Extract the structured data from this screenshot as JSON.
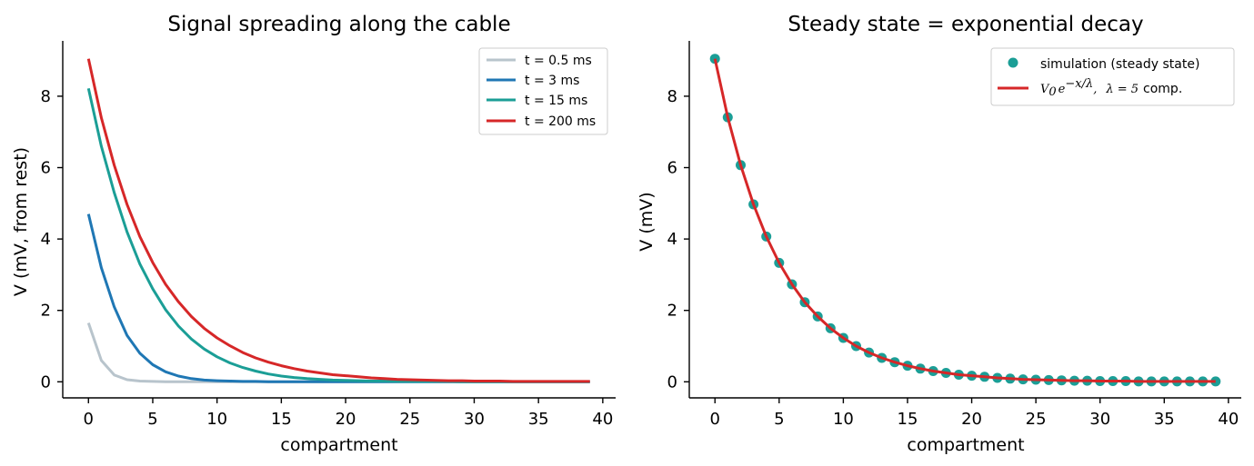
{
  "chart_data": [
    {
      "type": "line",
      "title": "Signal spreading along the cable",
      "xlabel": "compartment",
      "ylabel": "V (mV, from rest)",
      "xlim": [
        -2,
        41
      ],
      "ylim": [
        -0.45,
        9.55
      ],
      "xticks": [
        0,
        5,
        10,
        15,
        20,
        25,
        30,
        35,
        40
      ],
      "yticks": [
        0,
        2,
        4,
        6,
        8
      ],
      "grid": false,
      "legend_position": "top-right",
      "x": [
        0,
        1,
        2,
        3,
        4,
        5,
        6,
        7,
        8,
        9,
        10,
        11,
        12,
        13,
        14,
        15,
        16,
        17,
        18,
        19,
        20,
        21,
        22,
        23,
        24,
        25,
        26,
        27,
        28,
        29,
        30,
        31,
        32,
        33,
        34,
        35,
        36,
        37,
        38,
        39
      ],
      "series": [
        {
          "name": "t = 0.5 ms",
          "color": "#b8c4cc",
          "values": [
            1.65,
            0.6,
            0.19,
            0.06,
            0.02,
            0.01,
            0,
            0,
            0,
            0,
            0,
            0,
            0,
            0,
            0,
            0,
            0,
            0,
            0,
            0,
            0,
            0,
            0,
            0,
            0,
            0,
            0,
            0,
            0,
            0,
            0,
            0,
            0,
            0,
            0,
            0,
            0,
            0,
            0,
            0
          ]
        },
        {
          "name": "t = 3 ms",
          "color": "#1f77b4",
          "values": [
            4.7,
            3.2,
            2.1,
            1.3,
            0.8,
            0.48,
            0.28,
            0.16,
            0.09,
            0.05,
            0.03,
            0.02,
            0.01,
            0.01,
            0,
            0,
            0,
            0,
            0,
            0,
            0,
            0,
            0,
            0,
            0,
            0,
            0,
            0,
            0,
            0,
            0,
            0,
            0,
            0,
            0,
            0,
            0,
            0,
            0,
            0
          ]
        },
        {
          "name": "t = 15 ms",
          "color": "#1b9e96",
          "values": [
            8.22,
            6.6,
            5.3,
            4.2,
            3.3,
            2.6,
            2.02,
            1.56,
            1.2,
            0.92,
            0.7,
            0.53,
            0.4,
            0.3,
            0.22,
            0.16,
            0.12,
            0.09,
            0.07,
            0.05,
            0.04,
            0.03,
            0.02,
            0.02,
            0.01,
            0.01,
            0.01,
            0.01,
            0.01,
            0,
            0,
            0,
            0,
            0,
            0,
            0,
            0,
            0,
            0,
            0
          ]
        },
        {
          "name": "t = 200 ms",
          "color": "#d62728",
          "values": [
            9.05,
            7.4,
            6.07,
            4.97,
            4.07,
            3.34,
            2.73,
            2.24,
            1.83,
            1.5,
            1.23,
            1.01,
            0.82,
            0.67,
            0.55,
            0.45,
            0.37,
            0.3,
            0.25,
            0.2,
            0.17,
            0.14,
            0.11,
            0.09,
            0.07,
            0.06,
            0.05,
            0.04,
            0.03,
            0.03,
            0.02,
            0.02,
            0.02,
            0.01,
            0.01,
            0.01,
            0.01,
            0.01,
            0.01,
            0.01
          ]
        }
      ]
    },
    {
      "type": "scatter",
      "title": "Steady state = exponential decay",
      "xlabel": "compartment",
      "ylabel": "V (mV)",
      "xlim": [
        -2,
        41
      ],
      "ylim": [
        -0.45,
        9.55
      ],
      "xticks": [
        0,
        5,
        10,
        15,
        20,
        25,
        30,
        35,
        40
      ],
      "yticks": [
        0,
        2,
        4,
        6,
        8
      ],
      "grid": false,
      "legend_position": "top-right",
      "x": [
        0,
        1,
        2,
        3,
        4,
        5,
        6,
        7,
        8,
        9,
        10,
        11,
        12,
        13,
        14,
        15,
        16,
        17,
        18,
        19,
        20,
        21,
        22,
        23,
        24,
        25,
        26,
        27,
        28,
        29,
        30,
        31,
        32,
        33,
        34,
        35,
        36,
        37,
        38,
        39
      ],
      "series": [
        {
          "name": "simulation (steady state)",
          "kind": "points",
          "color": "#1b9e96",
          "values": [
            9.05,
            7.41,
            6.07,
            4.97,
            4.07,
            3.33,
            2.73,
            2.23,
            1.83,
            1.5,
            1.23,
            1.0,
            0.82,
            0.67,
            0.55,
            0.45,
            0.37,
            0.3,
            0.25,
            0.2,
            0.17,
            0.14,
            0.11,
            0.09,
            0.07,
            0.06,
            0.05,
            0.04,
            0.03,
            0.03,
            0.02,
            0.02,
            0.02,
            0.01,
            0.01,
            0.01,
            0.01,
            0.01,
            0.01,
            0.01
          ]
        },
        {
          "name": "V0 e^{-x/λ},  λ = 5 comp.",
          "kind": "line",
          "color": "#d62728",
          "V0": 9.05,
          "lambda": 5,
          "values": [
            9.05,
            7.41,
            6.07,
            4.97,
            4.07,
            3.33,
            2.73,
            2.23,
            1.83,
            1.5,
            1.23,
            1.0,
            0.82,
            0.67,
            0.55,
            0.45,
            0.37,
            0.3,
            0.25,
            0.2,
            0.17,
            0.14,
            0.11,
            0.09,
            0.07,
            0.06,
            0.05,
            0.04,
            0.03,
            0.03,
            0.02,
            0.02,
            0.02,
            0.01,
            0.01,
            0.01,
            0.01,
            0.01,
            0.01,
            0.01
          ]
        }
      ],
      "legend_math": {
        "V": "V",
        "sub": "0",
        "e": "e",
        "exp": "−x/λ",
        "sep": ",",
        "lam": "λ = 5",
        "unit": "comp."
      }
    }
  ]
}
